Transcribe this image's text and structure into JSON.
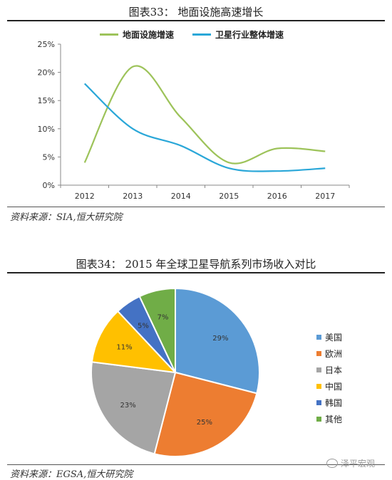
{
  "chart1": {
    "title": "图表33： 地面设施高速增长",
    "source": "资料来源：SIA,恒大研究院",
    "legend": [
      {
        "name": "地面设施增速",
        "color": "#9dc35a"
      },
      {
        "name": "卫星行业整体增速",
        "color": "#2aa7d8"
      }
    ]
  },
  "chart2": {
    "title": "图表34： 2015 年全球卫星导航系列市场收入对比",
    "source": "资料来源：EGSA,恒大研究院",
    "legend": [
      {
        "name": "美国",
        "color": "#5b9bd5"
      },
      {
        "name": "欧洲",
        "color": "#ed7d31"
      },
      {
        "name": "日本",
        "color": "#a5a5a5"
      },
      {
        "name": "中国",
        "color": "#ffc000"
      },
      {
        "name": "韩国",
        "color": "#4472c4"
      },
      {
        "name": "其他",
        "color": "#70ad47"
      }
    ]
  },
  "watermark": "泽平宏观",
  "chart_data": [
    {
      "type": "line",
      "title": "地面设施高速增长",
      "x": [
        "2012",
        "2013",
        "2014",
        "2015",
        "2016",
        "2017"
      ],
      "series": [
        {
          "name": "地面设施增速",
          "values": [
            4,
            21,
            12,
            4,
            6.5,
            6
          ]
        },
        {
          "name": "卫星行业整体增速",
          "values": [
            18,
            10,
            7,
            3,
            2.5,
            3
          ]
        }
      ],
      "yticks": [
        "0%",
        "5%",
        "10%",
        "15%",
        "20%",
        "25%"
      ],
      "ylim": [
        0,
        25
      ],
      "grid": false,
      "legend": "top"
    },
    {
      "type": "pie",
      "title": "2015 年全球卫星导航系列市场收入对比",
      "labels": [
        "美国",
        "欧洲",
        "日本",
        "中国",
        "韩国",
        "其他"
      ],
      "values": [
        29,
        25,
        23,
        11,
        5,
        7
      ],
      "value_labels": [
        "29%",
        "25%",
        "23%",
        "11%",
        "5%",
        "7%"
      ],
      "legend": "right"
    }
  ]
}
